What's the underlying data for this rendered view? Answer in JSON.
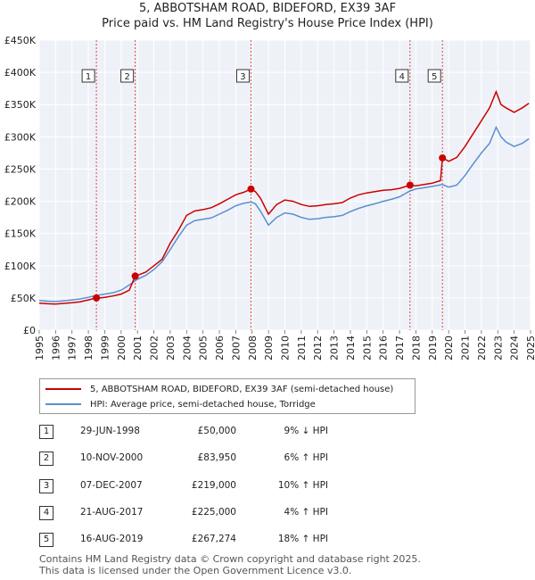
{
  "title_line1": "5, ABBOTSHAM ROAD, BIDEFORD, EX39 3AF",
  "title_line2": "Price paid vs. HM Land Registry's House Price Index (HPI)",
  "chart_data": {
    "type": "line",
    "x_range": [
      1995,
      2025
    ],
    "ylim": [
      0,
      450000
    ],
    "y_ticks": [
      {
        "value": 0,
        "label": "£0"
      },
      {
        "value": 50000,
        "label": "£50K"
      },
      {
        "value": 100000,
        "label": "£100K"
      },
      {
        "value": 150000,
        "label": "£150K"
      },
      {
        "value": 200000,
        "label": "£200K"
      },
      {
        "value": 250000,
        "label": "£250K"
      },
      {
        "value": 300000,
        "label": "£300K"
      },
      {
        "value": 350000,
        "label": "£350K"
      },
      {
        "value": 400000,
        "label": "£400K"
      },
      {
        "value": 450000,
        "label": "£450K"
      }
    ],
    "x_ticks": [
      "1995",
      "1996",
      "1997",
      "1998",
      "1999",
      "2000",
      "2001",
      "2002",
      "2003",
      "2004",
      "2005",
      "2006",
      "2007",
      "2008",
      "2009",
      "2010",
      "2011",
      "2012",
      "2013",
      "2014",
      "2015",
      "2016",
      "2017",
      "2018",
      "2019",
      "2020",
      "2021",
      "2022",
      "2023",
      "2024",
      "2025"
    ],
    "grid": true,
    "series": [
      {
        "name": "5, ABBOTSHAM ROAD, BIDEFORD, EX39 3AF (semi-detached house)",
        "color": "#cc0000",
        "points": [
          [
            1995.0,
            42000
          ],
          [
            1995.5,
            41000
          ],
          [
            1996.0,
            40500
          ],
          [
            1996.5,
            41500
          ],
          [
            1997.0,
            42500
          ],
          [
            1997.5,
            44000
          ],
          [
            1998.0,
            47000
          ],
          [
            1998.49,
            50000
          ],
          [
            1998.5,
            49500
          ],
          [
            1999.0,
            51000
          ],
          [
            1999.5,
            53000
          ],
          [
            2000.0,
            56000
          ],
          [
            2000.5,
            62000
          ],
          [
            2000.86,
            83950
          ],
          [
            2001.0,
            85000
          ],
          [
            2001.5,
            90000
          ],
          [
            2002.0,
            100000
          ],
          [
            2002.5,
            110000
          ],
          [
            2003.0,
            135000
          ],
          [
            2003.5,
            155000
          ],
          [
            2004.0,
            178000
          ],
          [
            2004.5,
            185000
          ],
          [
            2005.0,
            187000
          ],
          [
            2005.5,
            190000
          ],
          [
            2006.0,
            196000
          ],
          [
            2006.5,
            203000
          ],
          [
            2007.0,
            210000
          ],
          [
            2007.5,
            214000
          ],
          [
            2007.93,
            219000
          ],
          [
            2008.2,
            215000
          ],
          [
            2008.5,
            205000
          ],
          [
            2009.0,
            180000
          ],
          [
            2009.5,
            195000
          ],
          [
            2010.0,
            202000
          ],
          [
            2010.5,
            200000
          ],
          [
            2011.0,
            195000
          ],
          [
            2011.5,
            192000
          ],
          [
            2012.0,
            193000
          ],
          [
            2012.5,
            195000
          ],
          [
            2013.0,
            196000
          ],
          [
            2013.5,
            198000
          ],
          [
            2014.0,
            205000
          ],
          [
            2014.5,
            210000
          ],
          [
            2015.0,
            213000
          ],
          [
            2015.5,
            215000
          ],
          [
            2016.0,
            217000
          ],
          [
            2016.5,
            218000
          ],
          [
            2017.0,
            220000
          ],
          [
            2017.64,
            225000
          ],
          [
            2018.0,
            224000
          ],
          [
            2018.5,
            226000
          ],
          [
            2019.0,
            228000
          ],
          [
            2019.5,
            232000
          ],
          [
            2019.62,
            267274
          ],
          [
            2019.8,
            265000
          ],
          [
            2020.0,
            262000
          ],
          [
            2020.5,
            268000
          ],
          [
            2021.0,
            285000
          ],
          [
            2021.5,
            305000
          ],
          [
            2022.0,
            325000
          ],
          [
            2022.5,
            345000
          ],
          [
            2022.9,
            370000
          ],
          [
            2023.2,
            350000
          ],
          [
            2023.5,
            345000
          ],
          [
            2024.0,
            338000
          ],
          [
            2024.5,
            345000
          ],
          [
            2024.9,
            352000
          ]
        ]
      },
      {
        "name": "HPI: Average price, semi-detached house, Torridge",
        "color": "#5b8fd0",
        "points": [
          [
            1995.0,
            46000
          ],
          [
            1995.5,
            45000
          ],
          [
            1996.0,
            44500
          ],
          [
            1996.5,
            45500
          ],
          [
            1997.0,
            47000
          ],
          [
            1997.5,
            48500
          ],
          [
            1998.0,
            51000
          ],
          [
            1998.5,
            54000
          ],
          [
            1999.0,
            56000
          ],
          [
            1999.5,
            58000
          ],
          [
            2000.0,
            62000
          ],
          [
            2000.5,
            70000
          ],
          [
            2001.0,
            79000
          ],
          [
            2001.5,
            85000
          ],
          [
            2002.0,
            94000
          ],
          [
            2002.5,
            106000
          ],
          [
            2003.0,
            125000
          ],
          [
            2003.5,
            145000
          ],
          [
            2004.0,
            163000
          ],
          [
            2004.5,
            170000
          ],
          [
            2005.0,
            172000
          ],
          [
            2005.5,
            174000
          ],
          [
            2006.0,
            180000
          ],
          [
            2006.5,
            186000
          ],
          [
            2007.0,
            193000
          ],
          [
            2007.5,
            197000
          ],
          [
            2007.93,
            199000
          ],
          [
            2008.2,
            196000
          ],
          [
            2008.5,
            185000
          ],
          [
            2009.0,
            163000
          ],
          [
            2009.5,
            175000
          ],
          [
            2010.0,
            182000
          ],
          [
            2010.5,
            180000
          ],
          [
            2011.0,
            175000
          ],
          [
            2011.5,
            172000
          ],
          [
            2012.0,
            173000
          ],
          [
            2012.5,
            175000
          ],
          [
            2013.0,
            176000
          ],
          [
            2013.5,
            178000
          ],
          [
            2014.0,
            184000
          ],
          [
            2014.5,
            189000
          ],
          [
            2015.0,
            193000
          ],
          [
            2015.5,
            196000
          ],
          [
            2016.0,
            200000
          ],
          [
            2016.5,
            203000
          ],
          [
            2017.0,
            207000
          ],
          [
            2017.64,
            216000
          ],
          [
            2018.0,
            219000
          ],
          [
            2018.5,
            221000
          ],
          [
            2019.0,
            223000
          ],
          [
            2019.62,
            226000
          ],
          [
            2020.0,
            222000
          ],
          [
            2020.5,
            225000
          ],
          [
            2021.0,
            240000
          ],
          [
            2021.5,
            258000
          ],
          [
            2022.0,
            275000
          ],
          [
            2022.5,
            290000
          ],
          [
            2022.9,
            315000
          ],
          [
            2023.2,
            300000
          ],
          [
            2023.5,
            292000
          ],
          [
            2024.0,
            285000
          ],
          [
            2024.5,
            290000
          ],
          [
            2024.9,
            297000
          ]
        ]
      }
    ],
    "sales": [
      {
        "num": "1",
        "x": 1998.49,
        "y": 50000
      },
      {
        "num": "2",
        "x": 2000.86,
        "y": 83950
      },
      {
        "num": "3",
        "x": 2007.93,
        "y": 219000
      },
      {
        "num": "4",
        "x": 2017.64,
        "y": 225000
      },
      {
        "num": "5",
        "x": 2019.62,
        "y": 267274
      }
    ]
  },
  "legend": {
    "property_label": "5, ABBOTSHAM ROAD, BIDEFORD, EX39 3AF (semi-detached house)",
    "hpi_label": "HPI: Average price, semi-detached house, Torridge",
    "property_color": "#cc0000",
    "hpi_color": "#5b8fd0"
  },
  "transactions": [
    {
      "num": "1",
      "date": "29-JUN-1998",
      "price": "£50,000",
      "hpi": "9% ↓ HPI"
    },
    {
      "num": "2",
      "date": "10-NOV-2000",
      "price": "£83,950",
      "hpi": "6% ↑ HPI"
    },
    {
      "num": "3",
      "date": "07-DEC-2007",
      "price": "£219,000",
      "hpi": "10% ↑ HPI"
    },
    {
      "num": "4",
      "date": "21-AUG-2017",
      "price": "£225,000",
      "hpi": "4% ↑ HPI"
    },
    {
      "num": "5",
      "date": "16-AUG-2019",
      "price": "£267,274",
      "hpi": "18% ↑ HPI"
    }
  ],
  "footer_line1": "Contains HM Land Registry data © Crown copyright and database right 2025.",
  "footer_line2": "This data is licensed under the Open Government Licence v3.0."
}
